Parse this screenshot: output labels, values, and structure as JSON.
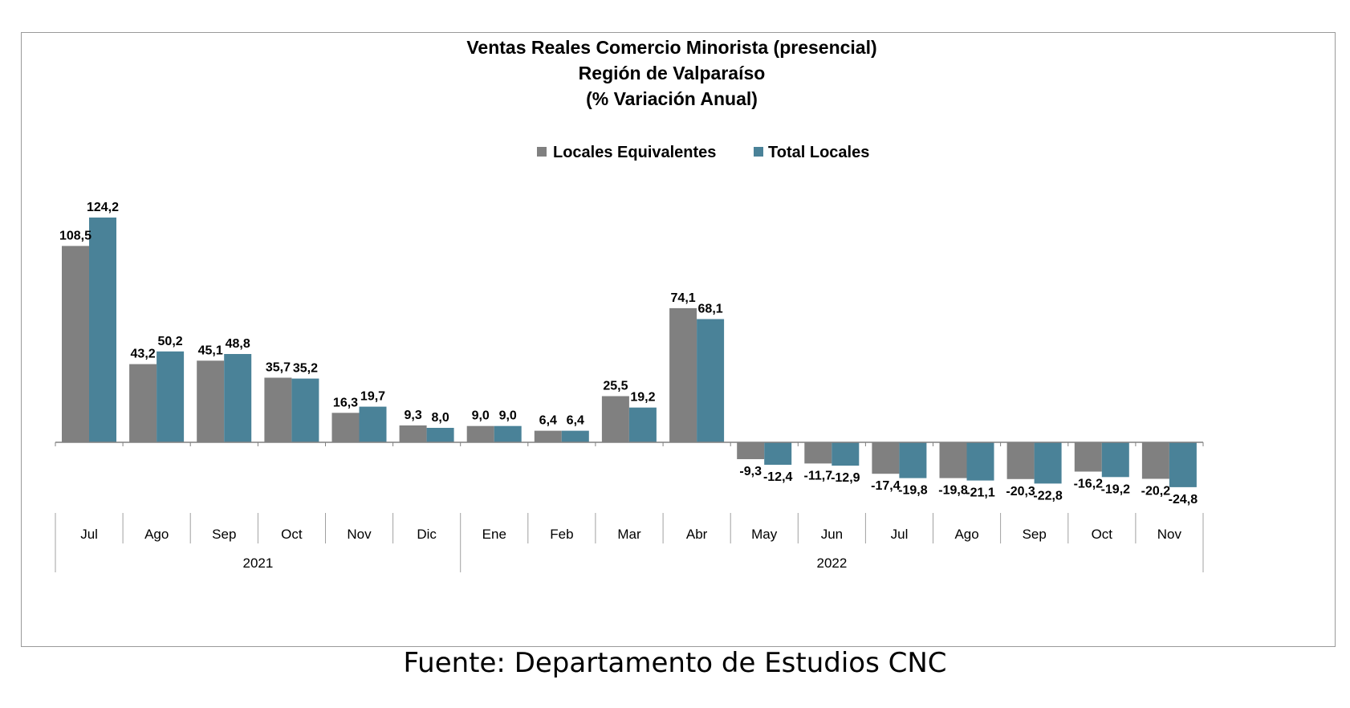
{
  "chart_data": {
    "type": "bar",
    "title": [
      "Ventas Reales Comercio Minorista (presencial)",
      "Región de Valparaíso",
      "(% Variación Anual)"
    ],
    "categories": [
      "Jul",
      "Ago",
      "Sep",
      "Oct",
      "Nov",
      "Dic",
      "Ene",
      "Feb",
      "Mar",
      "Abr",
      "May",
      "Jun",
      "Jul",
      "Ago",
      "Sep",
      "Oct",
      "Nov"
    ],
    "groups": [
      {
        "label": "2021",
        "start": 0,
        "end": 5
      },
      {
        "label": "2022",
        "start": 6,
        "end": 16
      }
    ],
    "series": [
      {
        "name": "Locales Equivalentes",
        "color": "#808080",
        "values": [
          108.5,
          43.2,
          45.1,
          35.7,
          16.3,
          9.3,
          9.0,
          6.4,
          25.5,
          74.1,
          -9.3,
          -11.7,
          -17.4,
          -19.8,
          -20.3,
          -16.2,
          -20.2
        ],
        "labels": [
          "108,5",
          "43,2",
          "45,1",
          "35,7",
          "16,3",
          "9,3",
          "9,0",
          "6,4",
          "25,5",
          "74,1",
          "-9,3",
          "-11,7",
          "-17,4",
          "-19,8",
          "-20,3",
          "-16,2",
          "-20,2"
        ]
      },
      {
        "name": "Total Locales",
        "color": "#4a8298",
        "values": [
          124.2,
          50.2,
          48.8,
          35.2,
          19.7,
          8.0,
          9.0,
          6.4,
          19.2,
          68.1,
          -12.4,
          -12.9,
          -19.8,
          -21.1,
          -22.8,
          -19.2,
          -24.8
        ],
        "labels": [
          "124,2",
          "50,2",
          "48,8",
          "35,2",
          "19,7",
          "8,0",
          "9,0",
          "6,4",
          "19,2",
          "68,1",
          "-12,4",
          "-12,9",
          "-19,8",
          "-21,1",
          "-22,8",
          "-19,2",
          "-24,8"
        ]
      }
    ],
    "legend_position": "top-center",
    "grid": false
  },
  "source": "Fuente: Departamento de Estudios CNC"
}
